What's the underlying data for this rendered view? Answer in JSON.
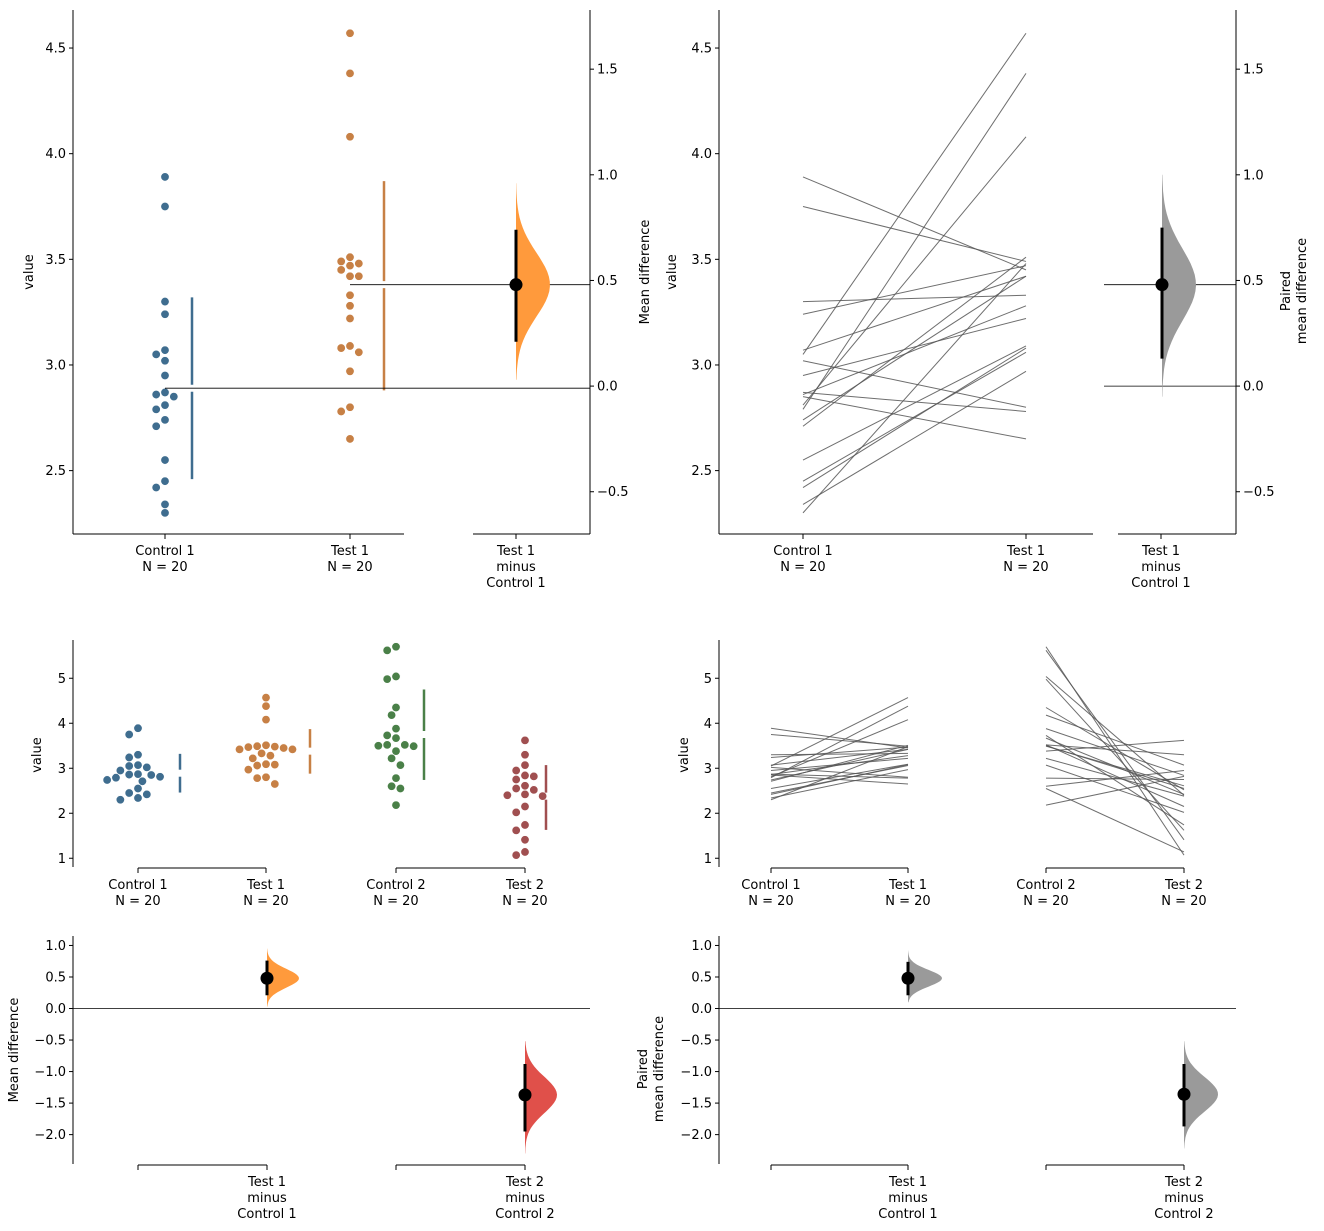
{
  "colors": {
    "control1": "#3f6d8f",
    "test1": "#c78045",
    "control2": "#4a8048",
    "test2": "#a04f50",
    "delta1": "#ff9a3c",
    "delta2": "#e0504a",
    "paired_delta": "#9a9a9a",
    "paired_line": "#555555"
  },
  "chart_data": [
    {
      "id": "two-group-unpaired",
      "type": "scatter",
      "ylabel": "value",
      "ylabel_right": "Mean difference",
      "ylim": [
        2.2,
        4.68
      ],
      "yticks": [
        "2.5",
        "3.0",
        "3.5",
        "4.0",
        "4.5"
      ],
      "right_ylim": [
        -0.7,
        1.78
      ],
      "right_yticks": [
        "−0.5",
        "0.0",
        "0.5",
        "1.0",
        "1.5"
      ],
      "categories": [
        "Control 1\nN = 20",
        "Test 1\nN = 20",
        "Test 1\nminus\nControl 1"
      ],
      "series": [
        {
          "name": "Control 1",
          "values": [
            3.89,
            3.75,
            3.3,
            3.24,
            3.07,
            3.05,
            3.02,
            2.95,
            2.87,
            2.86,
            2.85,
            2.81,
            2.79,
            2.74,
            2.71,
            2.55,
            2.45,
            2.42,
            2.34,
            2.3
          ],
          "mean": 2.89,
          "sd": [
            2.46,
            3.32
          ]
        },
        {
          "name": "Test 1",
          "values": [
            4.57,
            4.38,
            4.08,
            3.51,
            3.49,
            3.48,
            3.47,
            3.45,
            3.42,
            3.42,
            3.33,
            3.28,
            3.22,
            3.09,
            3.08,
            3.06,
            2.97,
            2.8,
            2.78,
            2.65
          ],
          "mean": 3.38,
          "sd": [
            2.88,
            3.87
          ]
        }
      ],
      "effect": {
        "label": "Test 1\nminus\nControl 1",
        "mean_difference": 0.48,
        "ci": [
          0.21,
          0.74
        ],
        "distribution_range": [
          0.03,
          0.96
        ]
      }
    },
    {
      "id": "two-group-paired",
      "type": "line",
      "ylabel": "value",
      "ylabel_right": "Paired\nmean difference",
      "ylim": [
        2.2,
        4.68
      ],
      "yticks": [
        "2.5",
        "3.0",
        "3.5",
        "4.0",
        "4.5"
      ],
      "right_ylim": [
        -0.7,
        1.78
      ],
      "right_yticks": [
        "−0.5",
        "0.0",
        "0.5",
        "1.0",
        "1.5"
      ],
      "categories": [
        "Control 1\nN = 20",
        "Test 1\nN = 20"
      ],
      "effect_label": "Test 1\nminus\nControl 1",
      "pairs": [
        [
          3.89,
          3.45
        ],
        [
          3.75,
          3.49
        ],
        [
          3.3,
          3.33
        ],
        [
          3.24,
          3.47
        ],
        [
          3.07,
          3.42
        ],
        [
          3.05,
          4.57
        ],
        [
          3.02,
          2.8
        ],
        [
          2.95,
          3.22
        ],
        [
          2.87,
          2.78
        ],
        [
          2.86,
          3.28
        ],
        [
          2.85,
          2.65
        ],
        [
          2.81,
          4.08
        ],
        [
          2.79,
          4.38
        ],
        [
          2.74,
          3.42
        ],
        [
          2.71,
          3.51
        ],
        [
          2.55,
          3.09
        ],
        [
          2.45,
          3.06
        ],
        [
          2.42,
          3.08
        ],
        [
          2.34,
          2.97
        ],
        [
          2.3,
          3.48
        ]
      ],
      "effect": {
        "mean_difference": 0.48,
        "ci": [
          0.13,
          0.75
        ],
        "distribution_range": [
          -0.05,
          1.0
        ]
      }
    },
    {
      "id": "multi-group-unpaired",
      "type": "scatter",
      "ylabel": "value",
      "ylim": [
        0.85,
        5.85
      ],
      "yticks": [
        "1",
        "2",
        "3",
        "4",
        "5"
      ],
      "categories": [
        "Control 1\nN = 20",
        "Test 1\nN = 20",
        "Control 2\nN = 20",
        "Test 2\nN = 20"
      ],
      "series": [
        {
          "name": "Control 1",
          "values": [
            3.89,
            3.75,
            3.3,
            3.24,
            3.07,
            3.05,
            3.02,
            2.95,
            2.87,
            2.86,
            2.85,
            2.81,
            2.79,
            2.74,
            2.71,
            2.55,
            2.45,
            2.42,
            2.34,
            2.3
          ],
          "mean": 2.89,
          "sd": [
            2.46,
            3.32
          ]
        },
        {
          "name": "Test 1",
          "values": [
            4.57,
            4.38,
            4.08,
            3.51,
            3.49,
            3.48,
            3.47,
            3.45,
            3.42,
            3.42,
            3.33,
            3.28,
            3.22,
            3.09,
            3.08,
            3.06,
            2.97,
            2.8,
            2.78,
            2.65
          ],
          "mean": 3.38,
          "sd": [
            2.88,
            3.87
          ]
        },
        {
          "name": "Control 2",
          "values": [
            5.7,
            5.62,
            5.04,
            4.98,
            4.35,
            4.18,
            3.88,
            3.73,
            3.67,
            3.52,
            3.52,
            3.5,
            3.49,
            3.38,
            3.22,
            3.07,
            2.78,
            2.6,
            2.55,
            2.18
          ],
          "mean": 3.75,
          "sd": [
            2.74,
            4.75
          ]
        },
        {
          "name": "Test 2",
          "values": [
            3.62,
            3.3,
            3.07,
            2.95,
            2.84,
            2.82,
            2.75,
            2.61,
            2.55,
            2.52,
            2.42,
            2.4,
            2.38,
            2.15,
            2.02,
            1.74,
            1.62,
            1.41,
            1.14,
            1.07
          ],
          "mean": 2.38,
          "sd": [
            1.63,
            3.07
          ]
        }
      ]
    },
    {
      "id": "multi-group-paired",
      "type": "line",
      "ylabel": "value",
      "ylim": [
        0.85,
        5.85
      ],
      "yticks": [
        "1",
        "2",
        "3",
        "4",
        "5"
      ],
      "categories": [
        "Control 1\nN = 20",
        "Test 1\nN = 20",
        "Control 2\nN = 20",
        "Test 2\nN = 20"
      ],
      "pairs_1": [
        [
          3.89,
          3.45
        ],
        [
          3.75,
          3.49
        ],
        [
          3.3,
          3.33
        ],
        [
          3.24,
          3.47
        ],
        [
          3.07,
          3.42
        ],
        [
          3.05,
          4.57
        ],
        [
          3.02,
          2.8
        ],
        [
          2.95,
          3.22
        ],
        [
          2.87,
          2.78
        ],
        [
          2.86,
          3.28
        ],
        [
          2.85,
          2.65
        ],
        [
          2.81,
          4.08
        ],
        [
          2.79,
          4.38
        ],
        [
          2.74,
          3.42
        ],
        [
          2.71,
          3.51
        ],
        [
          2.55,
          3.09
        ],
        [
          2.45,
          3.06
        ],
        [
          2.42,
          3.08
        ],
        [
          2.34,
          2.97
        ],
        [
          2.3,
          3.48
        ]
      ],
      "pairs_2": [
        [
          5.7,
          1.07
        ],
        [
          5.62,
          1.41
        ],
        [
          5.04,
          2.4
        ],
        [
          4.98,
          1.62
        ],
        [
          4.35,
          2.52
        ],
        [
          4.18,
          3.07
        ],
        [
          3.88,
          2.84
        ],
        [
          3.73,
          1.74
        ],
        [
          3.67,
          2.42
        ],
        [
          3.52,
          2.15
        ],
        [
          3.52,
          3.3
        ],
        [
          3.5,
          2.55
        ],
        [
          3.49,
          2.61
        ],
        [
          3.38,
          3.62
        ],
        [
          3.22,
          2.38
        ],
        [
          3.07,
          2.02
        ],
        [
          2.78,
          2.75
        ],
        [
          2.6,
          2.95
        ],
        [
          2.55,
          1.14
        ],
        [
          2.18,
          2.82
        ]
      ]
    },
    {
      "id": "multi-group-unpaired-delta",
      "type": "scatter",
      "ylabel": "Mean difference",
      "ylim": [
        -2.45,
        1.15
      ],
      "yticks": [
        "−2.0",
        "−1.5",
        "−1.0",
        "−0.5",
        "0.0",
        "0.5",
        "1.0"
      ],
      "categories": [
        "Test 1\nminus\nControl 1",
        "Test 2\nminus\nControl 2"
      ],
      "effects": [
        {
          "mean_difference": 0.48,
          "ci": [
            0.21,
            0.76
          ],
          "distribution_range": [
            0.03,
            0.95
          ]
        },
        {
          "mean_difference": -1.37,
          "ci": [
            -1.95,
            -0.88
          ],
          "distribution_range": [
            -2.3,
            -0.52
          ]
        }
      ]
    },
    {
      "id": "multi-group-paired-delta",
      "type": "scatter",
      "ylabel": "Paired\nmean difference",
      "ylim": [
        -2.45,
        1.15
      ],
      "yticks": [
        "−2.0",
        "−1.5",
        "−1.0",
        "−0.5",
        "0.0",
        "0.5",
        "1.0"
      ],
      "categories": [
        "Test 1\nminus\nControl 1",
        "Test 2\nminus\nControl 2"
      ],
      "effects": [
        {
          "mean_difference": 0.48,
          "ci": [
            0.21,
            0.74
          ],
          "distribution_range": [
            0.1,
            0.92
          ]
        },
        {
          "mean_difference": -1.36,
          "ci": [
            -1.87,
            -0.88
          ],
          "distribution_range": [
            -2.22,
            -0.52
          ]
        }
      ]
    }
  ]
}
